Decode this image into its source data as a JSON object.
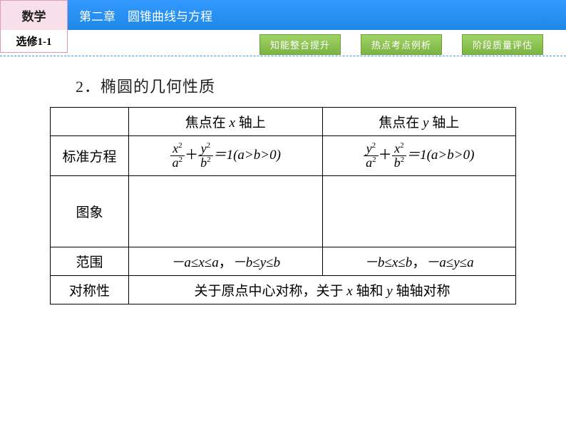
{
  "header": {
    "subject": "数学",
    "chapter": "第二章　圆锥曲线与方程",
    "edition": "选修1-1"
  },
  "nav": {
    "btn1": "知能整合提升",
    "btn2": "热点考点例析",
    "btn3": "阶段质量评估"
  },
  "heading": "2．椭圆的几何性质",
  "table": {
    "col1": "焦点在 x 轴上",
    "col2": "焦点在 y 轴上",
    "r_eq": "标准方程",
    "r_graph": "图象",
    "r_range": "范围",
    "r_sym": "对称性",
    "range1_a": "－a≤x≤a，",
    "range1_b": "－b≤y≤b",
    "range2_a": "－b≤x≤b，",
    "range2_b": "－a≤y≤a",
    "sym": "关于原点中心对称，关于 x 轴和 y 轴轴对称",
    "eq_suffix": "＝1(a>b>0)"
  },
  "colors": {
    "blue_bar": "#1e88e5",
    "nav_green": "#7cb342",
    "pink_box": "#f8e0eb",
    "dash": "#3399ff"
  }
}
